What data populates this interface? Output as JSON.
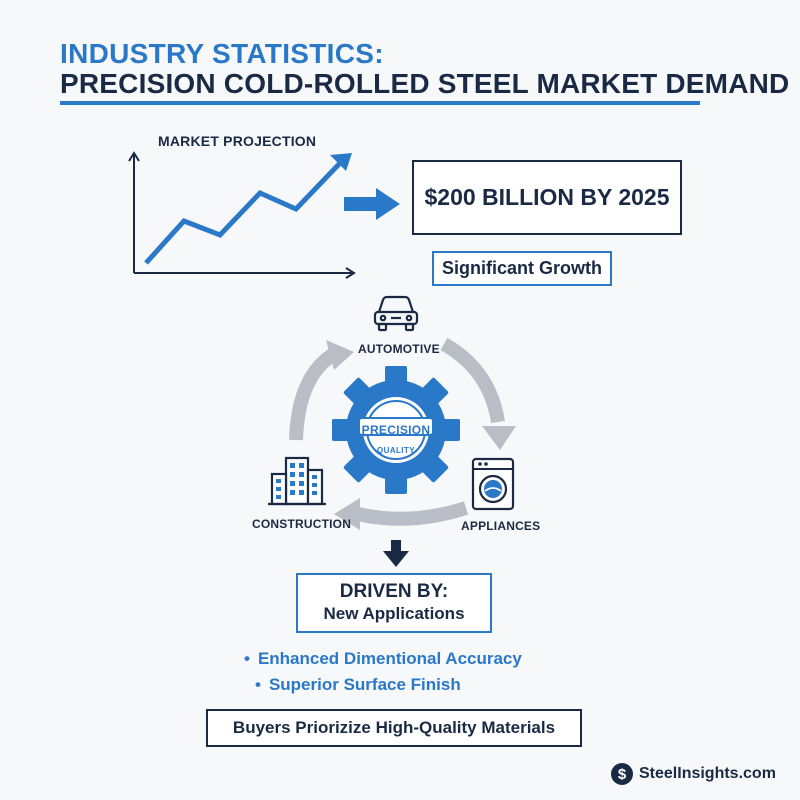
{
  "colors": {
    "accent": "#2a78c8",
    "dark": "#1b2a44",
    "cycle_arrow": "#b9bec6",
    "background": "#f7f8fa"
  },
  "title": {
    "line1": "INDUSTRY STATISTICS:",
    "line2": "PRECISION COLD-ROLLED STEEL MARKET DEMAND"
  },
  "projection": {
    "label": "MARKET PROJECTION",
    "value": "$200 BILLION BY 2025",
    "note": "Significant Growth",
    "icons": [
      "trend-line-icon",
      "right-arrow-icon"
    ]
  },
  "cycle": {
    "center_badge": {
      "main": "PRECISION",
      "sub": "QUALITY"
    },
    "sectors": [
      {
        "label": "AUTOMOTIVE",
        "icon": "car-icon"
      },
      {
        "label": "APPLIANCES",
        "icon": "washing-machine-icon"
      },
      {
        "label": "CONSTRUCTION",
        "icon": "building-icon"
      }
    ]
  },
  "drivers": {
    "heading": "DRIVEN BY:",
    "subheading": "New Applications",
    "bullets": [
      "Enhanced Dimentional Accuracy",
      "Superior Surface Finish"
    ]
  },
  "conclusion": "Buyers Priorizize High-Quality Materials",
  "footer": {
    "logo_glyph": "$",
    "brand": "SteelInsights.com"
  }
}
